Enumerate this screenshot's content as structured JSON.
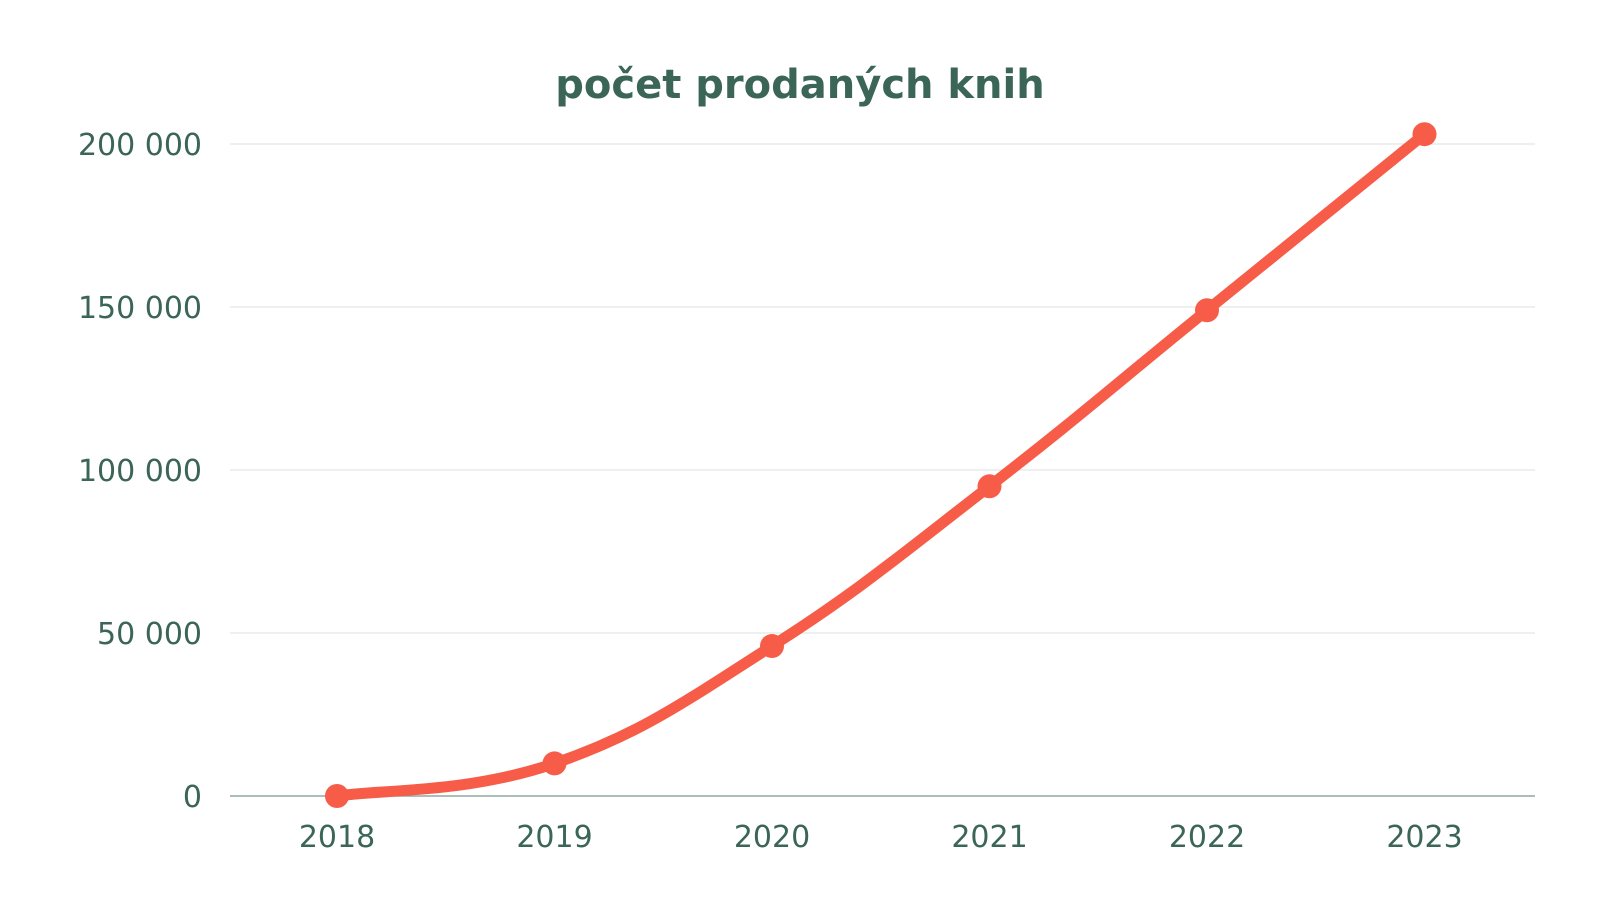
{
  "chart_data": {
    "type": "line",
    "title": "počet prodaných knih",
    "xlabel": "",
    "ylabel": "",
    "categories": [
      "2018",
      "2019",
      "2020",
      "2021",
      "2022",
      "2023"
    ],
    "series": [
      {
        "values": [
          0,
          10000,
          46000,
          95000,
          149000,
          203000
        ]
      }
    ],
    "ylim": [
      0,
      200000
    ],
    "yticks": [
      0,
      50000,
      100000,
      150000,
      200000
    ],
    "ytick_labels": [
      "0",
      "50 000",
      "100 000",
      "150 000",
      "200 000"
    ],
    "grid": true,
    "legend": "none",
    "colors": {
      "line": "#f75c48",
      "text": "#3b6657",
      "grid": "#e3e7e5",
      "axis": "#8fa89f"
    }
  }
}
